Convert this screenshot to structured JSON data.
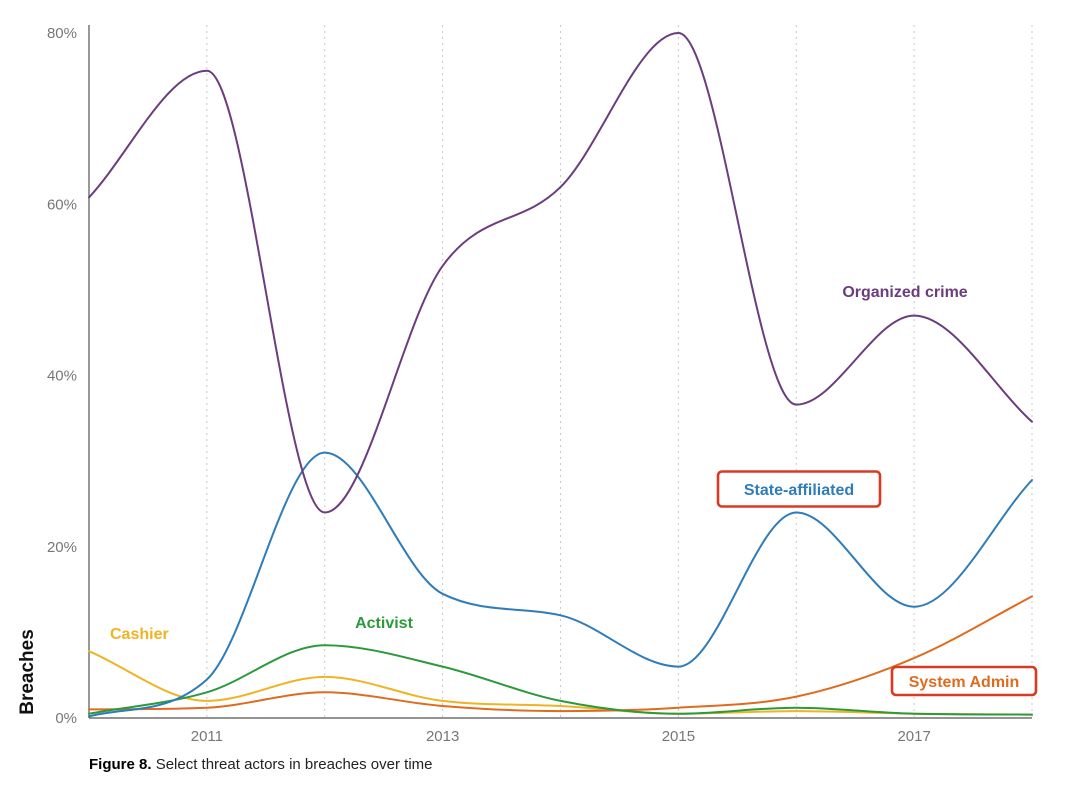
{
  "chart_data": {
    "type": "line",
    "x": [
      2010,
      2011,
      2012,
      2013,
      2014,
      2015,
      2016,
      2017,
      2018
    ],
    "xticks": [
      2011,
      2013,
      2015,
      2017
    ],
    "xtick_labels": [
      "2011",
      "2013",
      "2015",
      "2017"
    ],
    "xlim": [
      2010,
      2018
    ],
    "ylim": [
      0,
      80
    ],
    "yticks": [
      0,
      20,
      40,
      60,
      80
    ],
    "ytick_labels": [
      "0%",
      "20%",
      "40%",
      "60%",
      "80%"
    ],
    "ylabel": "Breaches",
    "xlabel": "",
    "grid": "vertical dotted",
    "series": [
      {
        "name": "Organized crime",
        "color": "#6b3d7e",
        "values": [
          60.8,
          75.6,
          24.0,
          52.8,
          62.0,
          80.0,
          36.6,
          47.0,
          34.6
        ],
        "boxed": false
      },
      {
        "name": "State-affiliated",
        "color": "#2e7cba",
        "values": [
          0.2,
          4.5,
          31.0,
          14.5,
          12.0,
          6.0,
          24.0,
          13.0,
          27.8
        ],
        "boxed": true
      },
      {
        "name": "Activist",
        "color": "#2c9a3a",
        "values": [
          0.5,
          3.0,
          8.5,
          6.0,
          2.0,
          0.5,
          1.2,
          0.5,
          0.4
        ],
        "boxed": false
      },
      {
        "name": "Cashier",
        "color": "#f0b323",
        "values": [
          7.8,
          2.0,
          4.8,
          2.0,
          1.4,
          0.5,
          0.8,
          0.5,
          0.4
        ],
        "boxed": false
      },
      {
        "name": "System Admin",
        "color": "#df6b1f",
        "values": [
          1.0,
          1.2,
          3.0,
          1.4,
          0.8,
          1.2,
          2.5,
          7.0,
          14.2
        ],
        "boxed": true
      }
    ]
  },
  "caption": {
    "figure": "Figure 8.",
    "text": "Select threat actors in breaches over time"
  },
  "annotation_box_color": "#d93a23"
}
